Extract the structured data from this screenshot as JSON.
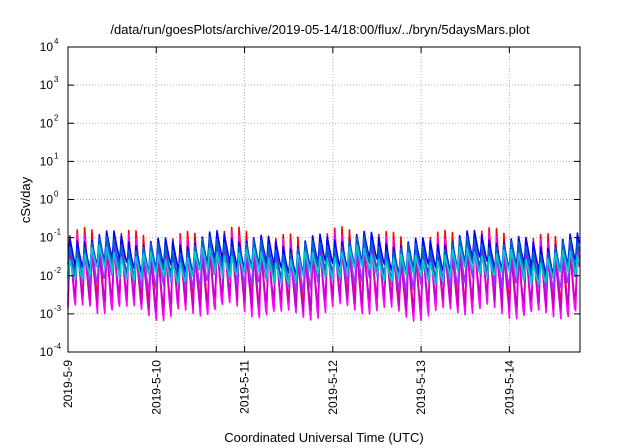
{
  "chart_data": {
    "type": "line",
    "title": "/data/run/goesPlots/archive/2019-05-14/18:00/flux/../bryn/5daysMars.plot",
    "xlabel": "Coordinated Universal Time (UTC)",
    "ylabel": "cSv/day",
    "yscale": "log",
    "ylim_exponents": [
      -4,
      4
    ],
    "y_tick_base": "10",
    "y_tick_exponents": [
      "-4",
      "-3",
      "-2",
      "-1",
      "0",
      "1",
      "2",
      "3",
      "4"
    ],
    "x_ticks": [
      "2019-5-9",
      "2019-5-10",
      "2019-5-11",
      "2019-5-12",
      "2019-5-13",
      "2019-5-14"
    ],
    "xlim_days": [
      0,
      5.8
    ],
    "grid": true,
    "legend": "none",
    "cycles_per_day": 12,
    "series": [
      {
        "color": "#ff0000",
        "peak_log": -0.95,
        "trough_log": -2.75
      },
      {
        "color": "#ff00ff",
        "peak_log": -1.1,
        "trough_log": -2.95
      },
      {
        "color": "#cc00cc",
        "peak_log": -1.35,
        "trough_log": -2.7
      },
      {
        "color": "#9933ff",
        "peak_log": -1.15,
        "trough_log": -2.2
      },
      {
        "color": "#0000ff",
        "peak_log": -1.05,
        "trough_log": -1.75
      },
      {
        "color": "#0066cc",
        "peak_log": -1.2,
        "trough_log": -1.9
      },
      {
        "color": "#00cccc",
        "peak_log": -1.45,
        "trough_log": -2.0
      }
    ]
  }
}
